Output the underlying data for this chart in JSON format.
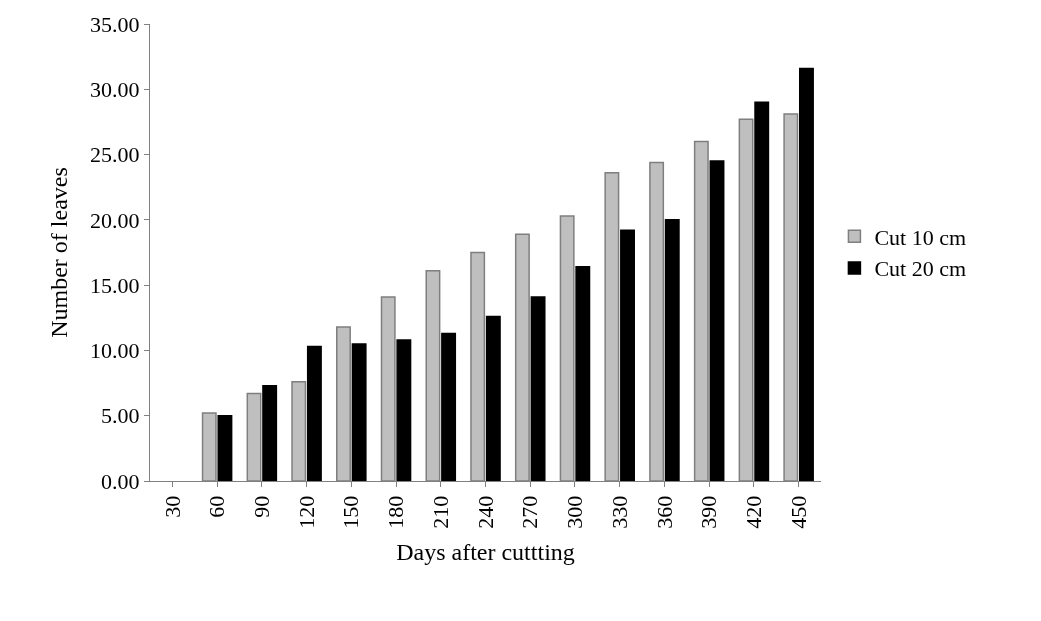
{
  "chart_data": {
    "type": "bar",
    "xlabel": "Days after cuttting",
    "ylabel": "Number of leaves",
    "categories": [
      "30",
      "60",
      "90",
      "120",
      "150",
      "180",
      "210",
      "240",
      "270",
      "300",
      "330",
      "360",
      "390",
      "420",
      "450"
    ],
    "series": [
      {
        "name": "Cut 10 cm",
        "color": "#bfbfbf",
        "values": [
          null,
          5.2,
          6.7,
          7.6,
          11.8,
          14.1,
          16.1,
          17.5,
          18.9,
          20.3,
          23.6,
          24.4,
          26.0,
          27.7,
          28.1
        ]
      },
      {
        "name": "Cut 20 cm",
        "color": "#000000",
        "values": [
          null,
          5.0,
          7.3,
          10.3,
          10.5,
          10.8,
          11.3,
          12.6,
          14.1,
          16.4,
          19.2,
          20.0,
          24.5,
          29.0,
          31.6
        ]
      }
    ],
    "ylim": [
      0,
      35
    ],
    "yticks": [
      {
        "value": 0,
        "label": "0.00"
      },
      {
        "value": 5,
        "label": "5.00"
      },
      {
        "value": 10,
        "label": "10.00"
      },
      {
        "value": 15,
        "label": "15.00"
      },
      {
        "value": 20,
        "label": "20.00"
      },
      {
        "value": 25,
        "label": "25.00"
      },
      {
        "value": 30,
        "label": "30.00"
      },
      {
        "value": 35,
        "label": "35.00"
      }
    ],
    "legend": "right"
  }
}
